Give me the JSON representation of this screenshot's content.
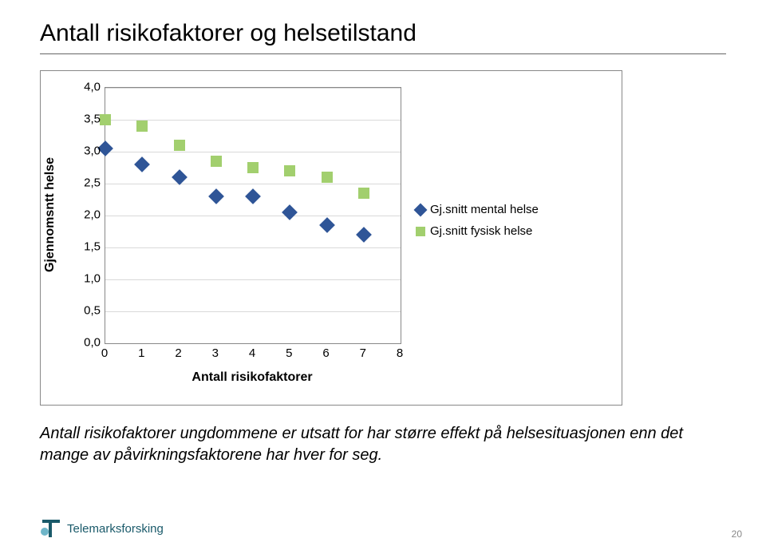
{
  "title": "Antall risikofaktorer og helsetilstand",
  "chart": {
    "type": "scatter",
    "plot_background": "#ffffff",
    "border_color": "#888888",
    "grid_color": "#d9d9d9",
    "ylabel": "Gjennomsntt helse",
    "xlabel": "Antall risikofaktorer",
    "label_fontsize": 16,
    "tick_fontsize": 15,
    "xlim": [
      0,
      8
    ],
    "ylim": [
      0.0,
      4.0
    ],
    "xticks": [
      0,
      1,
      2,
      3,
      4,
      5,
      6,
      7,
      8
    ],
    "yticks": [
      0.0,
      0.5,
      1.0,
      1.5,
      2.0,
      2.5,
      3.0,
      3.5,
      4.0
    ],
    "ytick_labels": [
      "0,0",
      "0,5",
      "1,0",
      "1,5",
      "2,0",
      "2,5",
      "3,0",
      "3,5",
      "4,0"
    ],
    "series": [
      {
        "name": "Gj.snitt  mental helse",
        "marker": "diamond",
        "color": "#2f5597",
        "size": 14,
        "x": [
          0,
          1,
          2,
          3,
          4,
          5,
          6,
          7
        ],
        "y": [
          3.05,
          2.8,
          2.6,
          2.3,
          2.3,
          2.05,
          1.85,
          1.7
        ]
      },
      {
        "name": "Gj.snitt fysisk helse",
        "marker": "square",
        "color": "#a2cf6e",
        "size": 14,
        "x": [
          0,
          1,
          2,
          3,
          4,
          5,
          6,
          7
        ],
        "y": [
          3.5,
          3.4,
          3.1,
          2.85,
          2.75,
          2.7,
          2.6,
          2.35
        ]
      }
    ],
    "legend_position": "right"
  },
  "caption": "Antall risikofaktorer ungdommene er utsatt for har større effekt  på helsesituasjonen enn det mange av påvirkningsfaktorene har hver for seg.",
  "footer_brand": "Telemarksforsking",
  "page_number": "20"
}
